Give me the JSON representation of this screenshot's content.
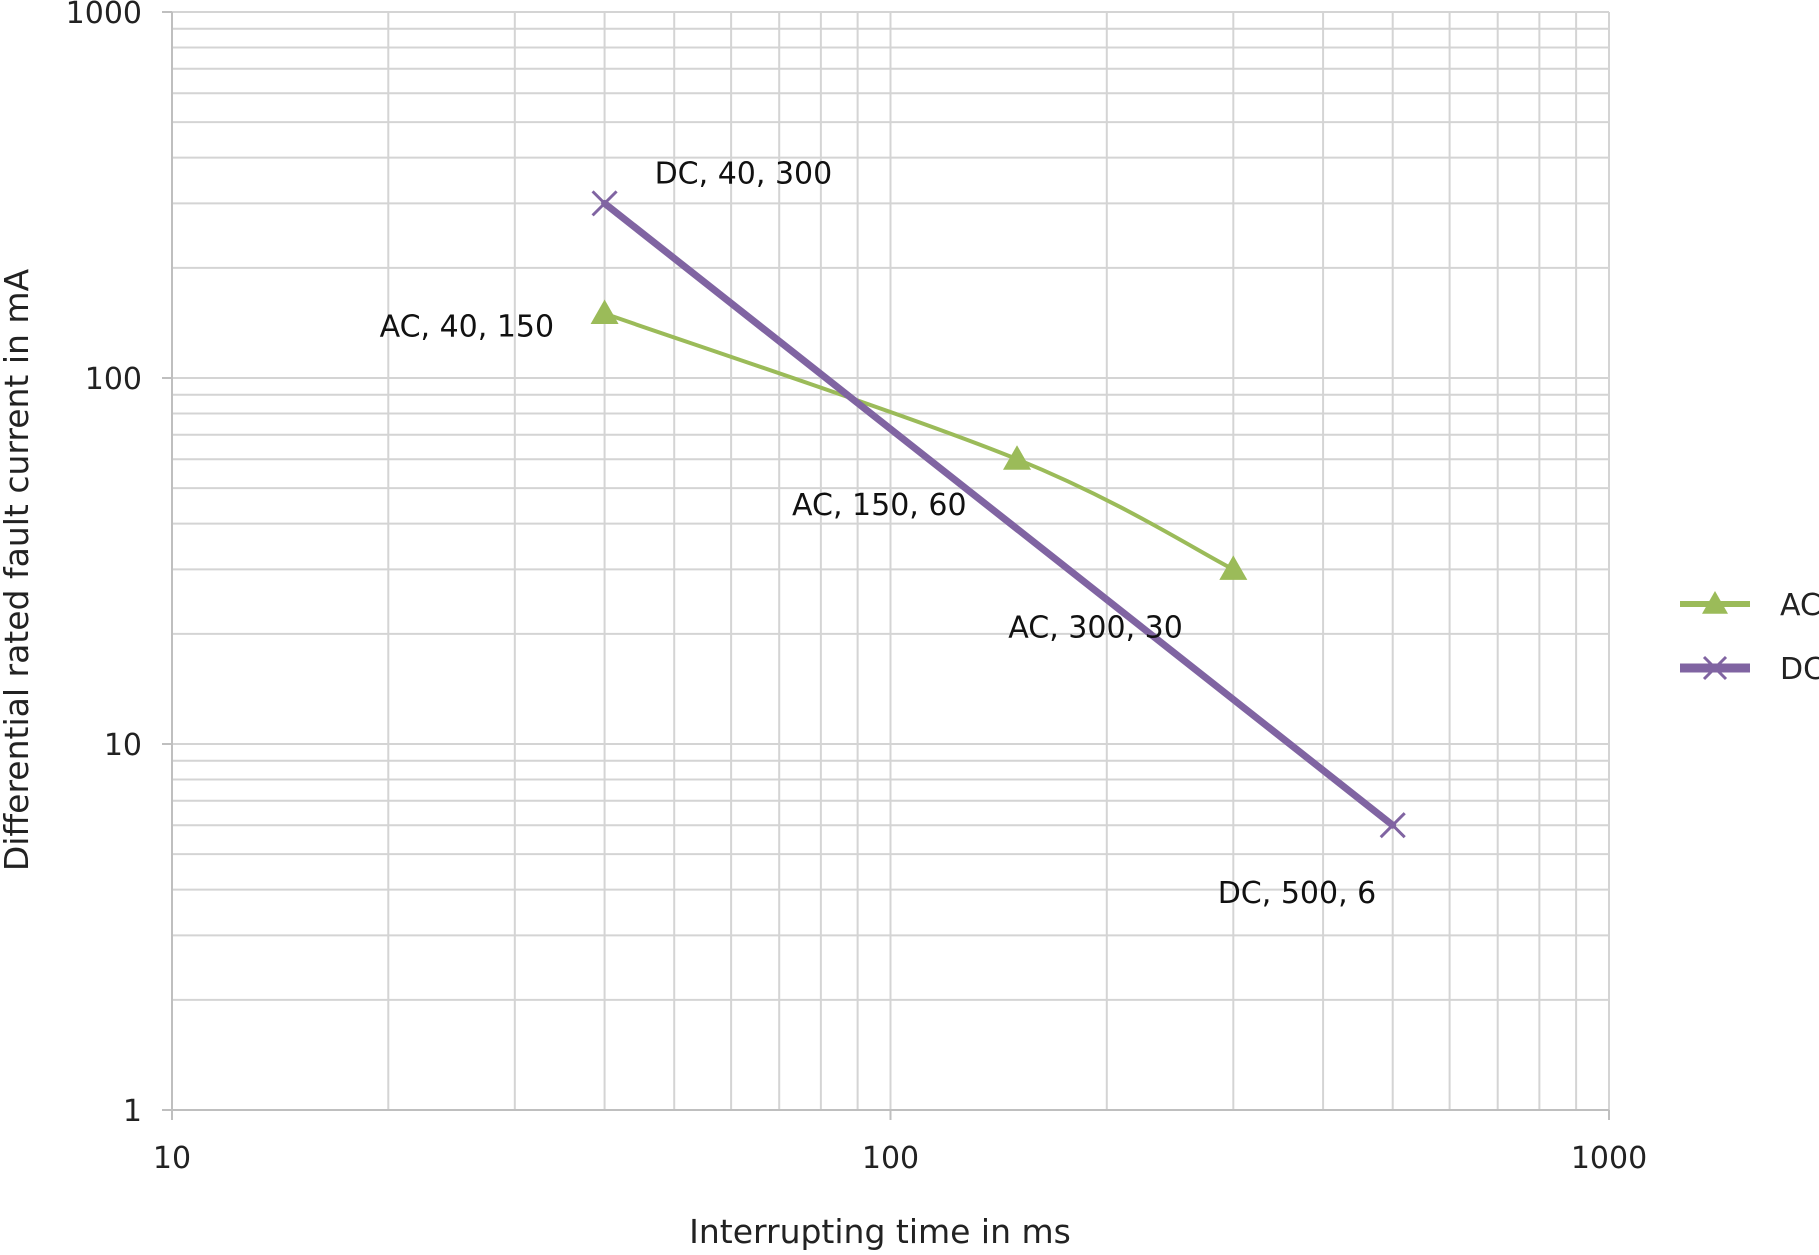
{
  "chart_data": {
    "type": "line",
    "title": "",
    "xlabel": "Interrupting time in ms",
    "ylabel": "Differential rated fault current in mA",
    "x_scale": "log",
    "y_scale": "log",
    "xlim": [
      10,
      1000
    ],
    "ylim": [
      1,
      1000
    ],
    "x_ticks": [
      "10",
      "100",
      "1000"
    ],
    "y_ticks": [
      "1",
      "10",
      "100",
      "1000"
    ],
    "grid": true,
    "legend_position": "right",
    "series": [
      {
        "name": "AC",
        "color": "#9bbb59",
        "marker": "triangle",
        "x": [
          40,
          150,
          300
        ],
        "y": [
          150,
          60,
          30
        ],
        "labels": [
          "AC, 40, 150",
          "AC, 150, 60",
          "AC, 300, 30"
        ]
      },
      {
        "name": "DC",
        "color": "#8064a2",
        "marker": "x",
        "x": [
          40,
          500
        ],
        "y": [
          300,
          6
        ],
        "labels": [
          "DC, 40, 300",
          "DC, 500, 6"
        ]
      }
    ]
  }
}
